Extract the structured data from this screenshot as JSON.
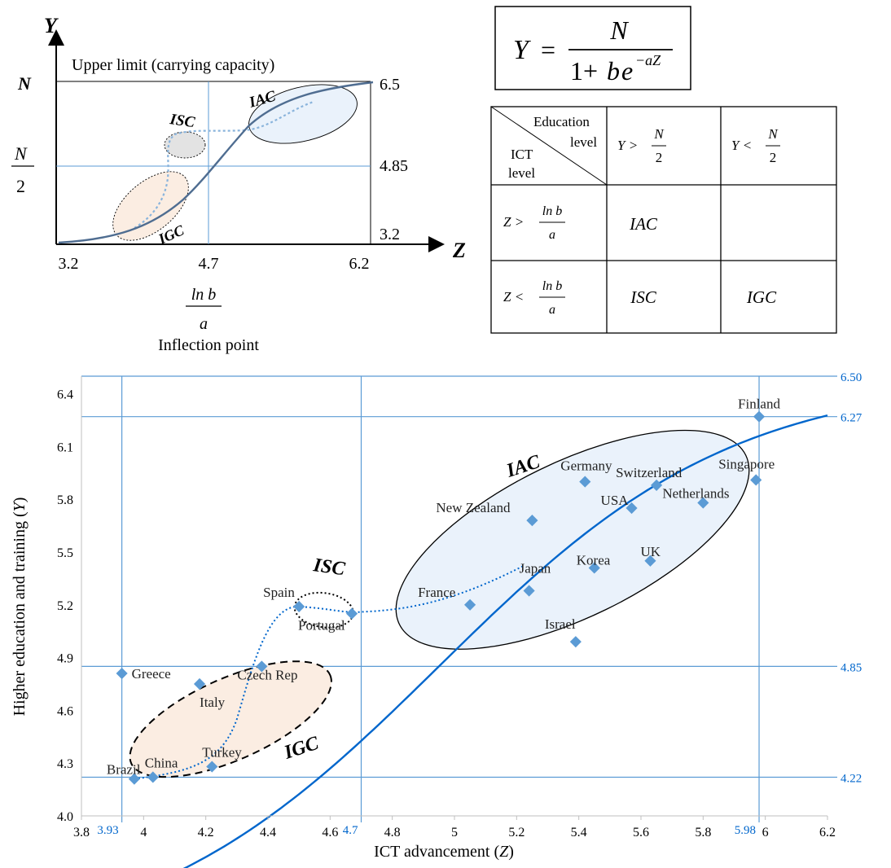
{
  "colors": {
    "curve": "#0066CC",
    "point": "#5B9BD5",
    "guide": "#5B9BD5",
    "iac_fill": "#EAF2FB",
    "igc_fill": "#FBEDE2",
    "isc_fill": "#E3E3E3",
    "schematic_curve": "#4F6D91",
    "schematic_dotted": "#8AB4DC"
  },
  "formula": {
    "lhs": "Y",
    "equals": "=",
    "numerator": "N",
    "denominator_prefix": "1+",
    "denominator_b": "b",
    "denominator_e": "e",
    "exponent": "−aZ"
  },
  "schematic": {
    "y_axis_label": "Y",
    "x_axis_label": "Z",
    "upper_limit_label": "Upper limit (carrying capacity)",
    "y_top_label": "N",
    "y_half_num": "N",
    "y_half_den": "2",
    "x_ticks": [
      "3.2",
      "4.7",
      "6.2"
    ],
    "right_values": [
      "6.5",
      "4.85",
      "3.2"
    ],
    "inflection_num": "ln b",
    "inflection_den": "a",
    "inflection_label": "Inflection point",
    "clusters": [
      "IAC",
      "ISC",
      "IGC"
    ]
  },
  "table": {
    "corner_top": "Education",
    "corner_mid": "level",
    "corner_left1": "ICT",
    "corner_left2": "level",
    "col1_prefix": "Y >",
    "col2_prefix": "Y <",
    "col_num": "N",
    "col_den": "2",
    "row1_prefix": "Z >",
    "row2_prefix": "Z <",
    "row_num": "ln b",
    "row_den": "a",
    "cells": [
      [
        "IAC",
        ""
      ],
      [
        "ISC",
        "IGC"
      ]
    ]
  },
  "chart_data": {
    "type": "scatter",
    "xlabel_text": "ICT advancement (",
    "xlabel_var": "Z",
    "xlabel_close": ")",
    "ylabel_text": "Higher education and training (",
    "ylabel_var": "Y",
    "ylabel_close": ")",
    "xlim": [
      3.8,
      6.2
    ],
    "ylim": [
      4.0,
      6.5
    ],
    "x_ticks": [
      "3.8",
      "4",
      "4.2",
      "4.4",
      "4.6",
      "4.8",
      "5",
      "5.2",
      "5.4",
      "5.6",
      "5.8",
      "6",
      "6.2"
    ],
    "y_ticks": [
      "4.0",
      "4.3",
      "4.6",
      "4.9",
      "5.2",
      "5.5",
      "5.8",
      "6.1",
      "6.4"
    ],
    "x_ref_lines": [
      {
        "value": 3.93,
        "label": "3.93"
      },
      {
        "value": 4.7,
        "label": "4.7"
      },
      {
        "value": 5.98,
        "label": "5.98"
      }
    ],
    "y_ref_lines": [
      {
        "value": 6.5,
        "label": "6.50"
      },
      {
        "value": 6.27,
        "label": "6.27"
      },
      {
        "value": 4.85,
        "label": "4.85"
      },
      {
        "value": 4.22,
        "label": "4.22"
      }
    ],
    "points": [
      {
        "name": "Brazil",
        "x": 3.97,
        "y": 4.21
      },
      {
        "name": "China",
        "x": 4.03,
        "y": 4.22
      },
      {
        "name": "Turkey",
        "x": 4.22,
        "y": 4.28
      },
      {
        "name": "Greece",
        "x": 3.93,
        "y": 4.81
      },
      {
        "name": "Italy",
        "x": 4.18,
        "y": 4.75
      },
      {
        "name": "Czech Rep",
        "x": 4.38,
        "y": 4.85
      },
      {
        "name": "Spain",
        "x": 4.5,
        "y": 5.19
      },
      {
        "name": "Portugal",
        "x": 4.67,
        "y": 5.15
      },
      {
        "name": "France",
        "x": 5.05,
        "y": 5.2
      },
      {
        "name": "Japan",
        "x": 5.24,
        "y": 5.28
      },
      {
        "name": "Israel",
        "x": 5.39,
        "y": 4.99
      },
      {
        "name": "Korea",
        "x": 5.45,
        "y": 5.41
      },
      {
        "name": "UK",
        "x": 5.63,
        "y": 5.45
      },
      {
        "name": "New Zealand",
        "x": 5.25,
        "y": 5.68
      },
      {
        "name": "Germany",
        "x": 5.42,
        "y": 5.9
      },
      {
        "name": "USA",
        "x": 5.57,
        "y": 5.75
      },
      {
        "name": "Switzerland",
        "x": 5.65,
        "y": 5.88
      },
      {
        "name": "Netherlands",
        "x": 5.8,
        "y": 5.78
      },
      {
        "name": "Singapore",
        "x": 5.97,
        "y": 5.91
      },
      {
        "name": "Finland",
        "x": 5.98,
        "y": 6.27
      }
    ],
    "clusters": [
      {
        "name": "IAC"
      },
      {
        "name": "ISC"
      },
      {
        "name": "IGC"
      }
    ]
  }
}
